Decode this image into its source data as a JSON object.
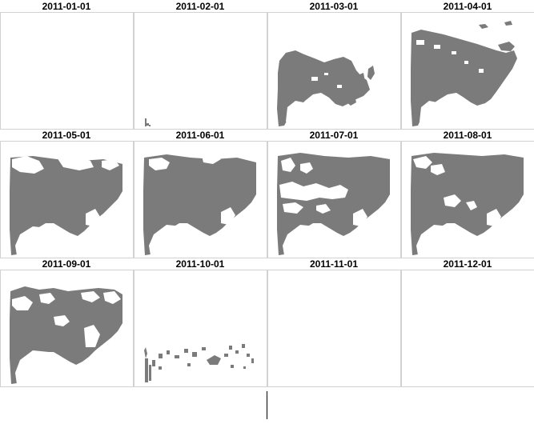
{
  "figure": {
    "layout": "facet-grid",
    "columns": 4,
    "rows": 3,
    "fill_color": "#7b7b7b",
    "background_color": "#ffffff",
    "frame_color": "#d2d2d2"
  },
  "panels": [
    {
      "label": "2011-01-01",
      "coverage": "none"
    },
    {
      "label": "2011-02-01",
      "coverage": "trace"
    },
    {
      "label": "2011-03-01",
      "coverage": "partial"
    },
    {
      "label": "2011-04-01",
      "coverage": "substantial"
    },
    {
      "label": "2011-05-01",
      "coverage": "extensive"
    },
    {
      "label": "2011-06-01",
      "coverage": "extensive"
    },
    {
      "label": "2011-07-01",
      "coverage": "substantial"
    },
    {
      "label": "2011-08-01",
      "coverage": "extensive"
    },
    {
      "label": "2011-09-01",
      "coverage": "substantial"
    },
    {
      "label": "2011-10-01",
      "coverage": "sparse"
    },
    {
      "label": "2011-11-01",
      "coverage": "none"
    },
    {
      "label": "2011-12-01",
      "coverage": "none"
    }
  ]
}
